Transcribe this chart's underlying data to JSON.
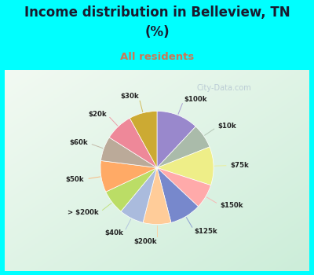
{
  "title_line1": "Income distribution in Belleview, TN",
  "title_line2": "(%)",
  "subtitle": "All residents",
  "title_color": "#1a1a2e",
  "subtitle_color": "#cc7755",
  "background_color": "#00ffff",
  "labels": [
    "$100k",
    "$10k",
    "$75k",
    "$150k",
    "$125k",
    "$200k",
    "$40k",
    "> $200k",
    "$50k",
    "$60k",
    "$20k",
    "$30k"
  ],
  "values": [
    12,
    7,
    11,
    7,
    9,
    8,
    7,
    7,
    9,
    7,
    8,
    8
  ],
  "colors": [
    "#9988cc",
    "#aabbaa",
    "#eeee88",
    "#ffaaaa",
    "#7788cc",
    "#ffcc99",
    "#aabbdd",
    "#bbdd66",
    "#ffaa66",
    "#bbaa99",
    "#ee8899",
    "#ccaa33"
  ],
  "line_colors": [
    "#9988cc",
    "#aabbaa",
    "#eeee88",
    "#ffaaaa",
    "#7788cc",
    "#ffcc99",
    "#aabbdd",
    "#bbdd66",
    "#ffaa66",
    "#bbaa99",
    "#ee8899",
    "#ccaa33"
  ],
  "watermark": "City-Data.com",
  "chart_border_color": "#00ffff",
  "chart_bg_color": "#e0f0e8"
}
